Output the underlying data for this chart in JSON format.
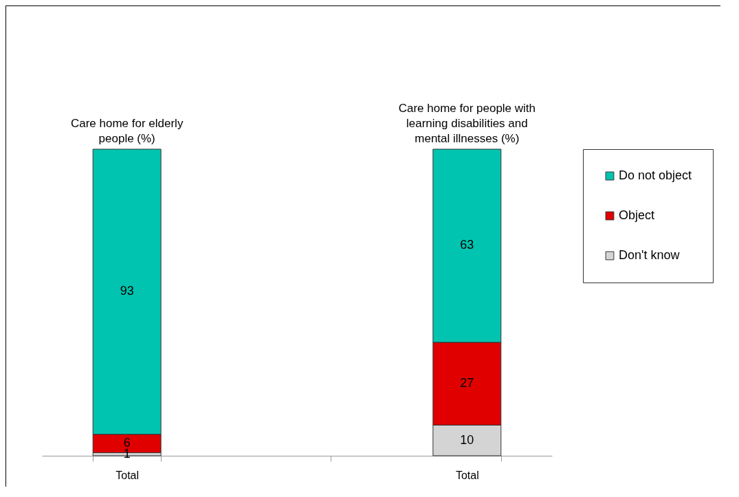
{
  "chart_data": {
    "type": "bar",
    "stacked": true,
    "categories": [
      "Total",
      null,
      "Total"
    ],
    "series": [
      {
        "name": "Don't know",
        "color": "#d4d4d4",
        "values": [
          1,
          null,
          10
        ]
      },
      {
        "name": "Object",
        "color": "#e00000",
        "values": [
          6,
          null,
          27
        ]
      },
      {
        "name": "Do not object",
        "color": "#00c4b0",
        "values": [
          93,
          null,
          63
        ]
      }
    ],
    "annotations": [
      "Care home for elderly people (%)",
      "Care home for people with learning disabilities and mental illnesses (%)"
    ],
    "data_labels": true,
    "legend": "right",
    "grid": false
  }
}
